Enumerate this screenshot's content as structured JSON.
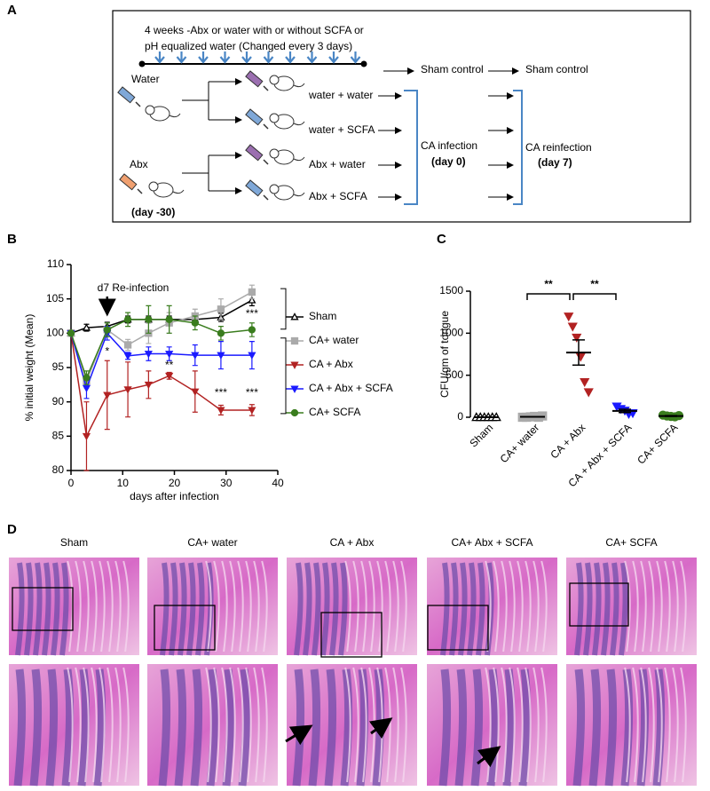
{
  "panel_a": {
    "label": "A",
    "header_lines": [
      "4 weeks -Abx or water with or without SCFA or",
      "pH equalized water (Changed every 3 days)"
    ],
    "water": "Water",
    "abx": "Abx",
    "start_day": "(day  -30)",
    "groups": [
      "water + water",
      "water + SCFA",
      "Abx + water",
      "Abx + SCFA"
    ],
    "sham_control": [
      "Sham control",
      "Sham control"
    ],
    "infection": "CA infection",
    "infection_day": "(day 0)",
    "reinfection": "CA reinfection",
    "reinfection_day": "(day 7)"
  },
  "chart_data": [
    {
      "type": "line",
      "panel": "B",
      "xlabel": "days after infection",
      "ylabel": "% initial weight  (Mean)",
      "x": [
        0,
        3,
        7,
        11,
        15,
        19,
        24,
        29,
        35
      ],
      "xlim": [
        0,
        40
      ],
      "xticks": [
        0,
        10,
        20,
        30,
        40
      ],
      "ylim": [
        80,
        110
      ],
      "yticks": [
        80,
        85,
        90,
        95,
        100,
        105,
        110
      ],
      "series": [
        {
          "name": "Sham",
          "color": "#000000",
          "marker": "triangle-up-open",
          "values": [
            100,
            100.8,
            101,
            102,
            102,
            102,
            102,
            102.3,
            104.8
          ],
          "errors": [
            0,
            0.5,
            0.6,
            0.5,
            0.5,
            0.5,
            0.5,
            0.6,
            0.8
          ]
        },
        {
          "name": "CA+ water",
          "color": "#aaaaaa",
          "marker": "square",
          "values": [
            100,
            93,
            100.5,
            98.3,
            100,
            101.5,
            102.5,
            103.5,
            106
          ],
          "errors": [
            0,
            1,
            1,
            0.8,
            1.5,
            1.5,
            1,
            1.5,
            1
          ]
        },
        {
          "name": "CA + Abx",
          "color": "#b22222",
          "marker": "triangle-down",
          "values": [
            100,
            85,
            91,
            91.8,
            92.5,
            93.8,
            91.5,
            88.8,
            88.8
          ],
          "errors": [
            0,
            5,
            5,
            4,
            2,
            0.5,
            3,
            0.7,
            0.8
          ]
        },
        {
          "name": "CA + Abx + SCFA",
          "color": "#1a1aff",
          "marker": "triangle-down",
          "values": [
            100,
            92,
            100,
            96.7,
            97,
            97,
            96.8,
            96.8,
            96.8
          ],
          "errors": [
            0,
            1.5,
            1,
            0.5,
            1,
            1,
            1.5,
            2,
            2
          ]
        },
        {
          "name": "CA+ SCFA",
          "color": "#3a7d1e",
          "marker": "circle",
          "values": [
            100,
            93.5,
            100.5,
            102,
            102,
            102,
            101.5,
            100,
            100.5
          ],
          "errors": [
            0,
            1,
            1,
            1,
            2,
            2,
            1,
            1,
            1
          ]
        }
      ],
      "annotations": [
        "d7 Re-infection",
        "*",
        "**",
        "***",
        "***",
        "***"
      ]
    },
    {
      "type": "scatter",
      "panel": "C",
      "ylabel": "CFU/gm of tongue",
      "ylim": [
        0,
        1500
      ],
      "yticks": [
        0,
        500,
        1000,
        1500
      ],
      "groups": [
        {
          "name": "Sham",
          "color": "#000000",
          "marker": "triangle-up-open",
          "values": [
            0,
            0,
            0,
            0,
            0,
            0
          ],
          "mean": 0,
          "sem": 0
        },
        {
          "name": "CA+ water",
          "color": "#aaaaaa",
          "marker": "square",
          "values": [
            0,
            0,
            5,
            10,
            0,
            15
          ],
          "mean": 5,
          "sem": 3
        },
        {
          "name": "CA + Abx",
          "color": "#b22222",
          "marker": "triangle-down",
          "values": [
            1200,
            1080,
            950,
            720,
            420,
            300
          ],
          "mean": 770,
          "sem": 150
        },
        {
          "name": "CA + Abx + SCFA",
          "color": "#1a1aff",
          "marker": "triangle-down",
          "values": [
            130,
            100,
            80,
            40,
            50
          ],
          "mean": 75,
          "sem": 20
        },
        {
          "name": "CA+ SCFA",
          "color": "#3a7d1e",
          "marker": "circle",
          "values": [
            25,
            15,
            10,
            5,
            20
          ],
          "mean": 15,
          "sem": 5
        }
      ],
      "annotations": [
        "**",
        "**"
      ]
    }
  ],
  "panel_d": {
    "label": "D",
    "columns": [
      "Sham",
      "CA+ water",
      "CA + Abx",
      "CA+ Abx + SCFA",
      "CA+ SCFA"
    ]
  }
}
